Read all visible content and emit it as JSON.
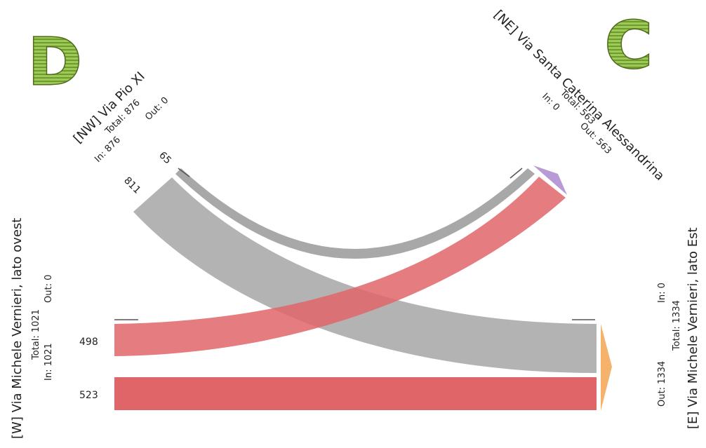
{
  "corner_letters": {
    "left": "D",
    "right": "C"
  },
  "colors": {
    "flow_gray": "#9e9e9e",
    "flow_red": "#e06569",
    "arrow_orange": "#f4b26c",
    "arrow_purple": "#b79ad6",
    "letter_green": "#8fc14a"
  },
  "nodes": {
    "nw": {
      "name": "[NW] Via Pio XI",
      "total": "Total: 876",
      "in": "In: 876",
      "out": "Out: 0"
    },
    "ne": {
      "name": "[NE] Via Santa Caterina Alessandrina",
      "total": "Total: 563",
      "in": "In: 0",
      "out": "Out: 563"
    },
    "w": {
      "name": "[W] Via Michele Vernieri, lato ovest",
      "total": "Total: 1021",
      "in": "In: 1021",
      "out": "Out: 0"
    },
    "e": {
      "name": "[E] Via Michele Vernieri, lato Est",
      "total": "Total: 1334",
      "in": "In: 0",
      "out": "Out: 1334"
    }
  },
  "flow_labels": {
    "nw_to_e": "811",
    "nw_to_ne": "65",
    "w_to_ne": "498",
    "w_to_e": "523"
  },
  "chart_data": {
    "type": "chord",
    "nodes": [
      {
        "id": "NW",
        "total": 876,
        "in": 876,
        "out": 0
      },
      {
        "id": "NE",
        "total": 563,
        "in": 0,
        "out": 563
      },
      {
        "id": "W",
        "total": 1021,
        "in": 1021,
        "out": 0
      },
      {
        "id": "E",
        "total": 1334,
        "in": 0,
        "out": 1334
      }
    ],
    "flows": [
      {
        "from": "NW",
        "to": "E",
        "value": 811
      },
      {
        "from": "NW",
        "to": "NE",
        "value": 65
      },
      {
        "from": "W",
        "to": "NE",
        "value": 498
      },
      {
        "from": "W",
        "to": "E",
        "value": 523
      }
    ]
  }
}
